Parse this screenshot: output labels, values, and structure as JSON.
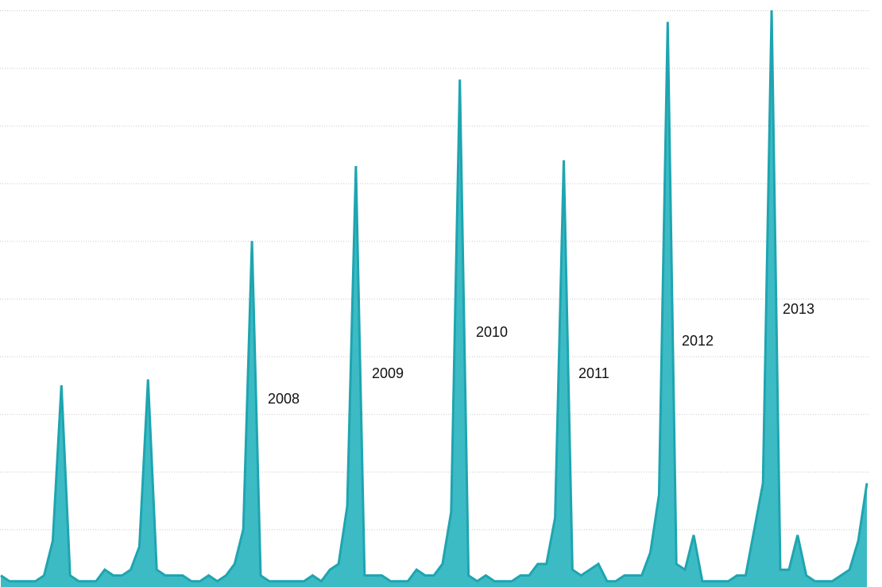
{
  "chart_data": {
    "type": "area",
    "categories": [
      null,
      null,
      null,
      null,
      null,
      null,
      null,
      null,
      null,
      null,
      null,
      null,
      null,
      null,
      null,
      null,
      null,
      null,
      null,
      null,
      null,
      null,
      null,
      null,
      null,
      null,
      null,
      null,
      null,
      null,
      null,
      null,
      null,
      null,
      null,
      null,
      null,
      null,
      null,
      null,
      null,
      null,
      null,
      null,
      null,
      null,
      null,
      null,
      null,
      null,
      null,
      null,
      null,
      null,
      null,
      null,
      null,
      null,
      null,
      null,
      null,
      null,
      null,
      null,
      null,
      null,
      null,
      null,
      null,
      null,
      null,
      null,
      null,
      null,
      null,
      null,
      null,
      null,
      null,
      null,
      null,
      null,
      null,
      null,
      null,
      null,
      null,
      null,
      null,
      null,
      null,
      null,
      null,
      null,
      null,
      null,
      null,
      null,
      null,
      null,
      null
    ],
    "values": [
      0.2,
      0.1,
      0.1,
      0.1,
      0.1,
      0.2,
      0.8,
      3.5,
      0.2,
      0.1,
      0.1,
      0.1,
      0.3,
      0.2,
      0.2,
      0.3,
      0.7,
      3.6,
      0.3,
      0.2,
      0.2,
      0.2,
      0.1,
      0.1,
      0.2,
      0.1,
      0.2,
      0.4,
      1.0,
      6.0,
      0.2,
      0.1,
      0.1,
      0.1,
      0.1,
      0.1,
      0.2,
      0.1,
      0.3,
      0.4,
      1.4,
      7.3,
      0.2,
      0.2,
      0.2,
      0.1,
      0.1,
      0.1,
      0.3,
      0.2,
      0.2,
      0.4,
      1.3,
      8.8,
      0.2,
      0.1,
      0.2,
      0.1,
      0.1,
      0.1,
      0.2,
      0.2,
      0.4,
      0.4,
      1.2,
      7.4,
      0.3,
      0.2,
      0.3,
      0.4,
      0.1,
      0.1,
      0.2,
      0.2,
      0.2,
      0.6,
      1.6,
      9.8,
      0.4,
      0.3,
      0.9,
      0.1,
      0.1,
      0.1,
      0.1,
      0.2,
      0.2,
      1.0,
      1.8,
      10.0,
      0.3,
      0.3,
      0.9,
      0.2,
      0.1,
      0.1,
      0.1,
      0.2,
      0.3,
      0.8,
      1.8
    ],
    "color": "#3dbbc5",
    "line_color": "#1ea5b0",
    "ylim": [
      0,
      10
    ],
    "yticks": [
      0,
      1,
      2,
      3,
      4,
      5,
      6,
      7,
      8,
      9,
      10
    ],
    "grid": true,
    "annotations": [
      "2008",
      "2009",
      "2010",
      "2011",
      "2012",
      "2013"
    ]
  }
}
